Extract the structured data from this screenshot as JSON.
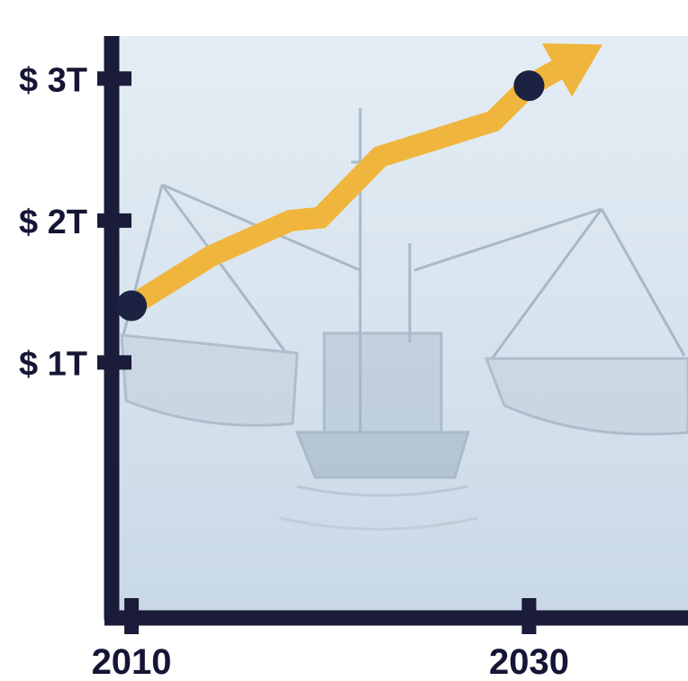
{
  "chart_data": {
    "type": "line",
    "title": "",
    "xlabel": "",
    "ylabel": "",
    "x_ticks": [
      {
        "value": 2010,
        "label": "2010"
      },
      {
        "value": 2030,
        "label": "2030"
      }
    ],
    "y_ticks": [
      {
        "value": 1,
        "label": "$ 1T"
      },
      {
        "value": 2,
        "label": "$ 2T"
      },
      {
        "value": 3,
        "label": "$ 3T"
      }
    ],
    "xlim": [
      2009,
      2038
    ],
    "ylim": [
      -0.8,
      3.3
    ],
    "series": [
      {
        "x": [
          2010,
          2014,
          2018,
          2019.5,
          2022.5,
          2028.2,
          2030
        ],
        "y": [
          1.4,
          1.75,
          2.0,
          2.02,
          2.45,
          2.7,
          2.95
        ]
      }
    ],
    "endpoint_markers": [
      {
        "x": 2010,
        "y": 1.4
      },
      {
        "x": 2030,
        "y": 2.95
      }
    ],
    "arrow_head": {
      "x": 2033.7,
      "y": 3.24
    },
    "grid": false,
    "legend": "none",
    "colors": {
      "axis": "#1b1b3a",
      "line": "#f0b53c",
      "marker": "#1c2241",
      "background": "#d7e4ef",
      "tick_text": "#151535"
    }
  }
}
